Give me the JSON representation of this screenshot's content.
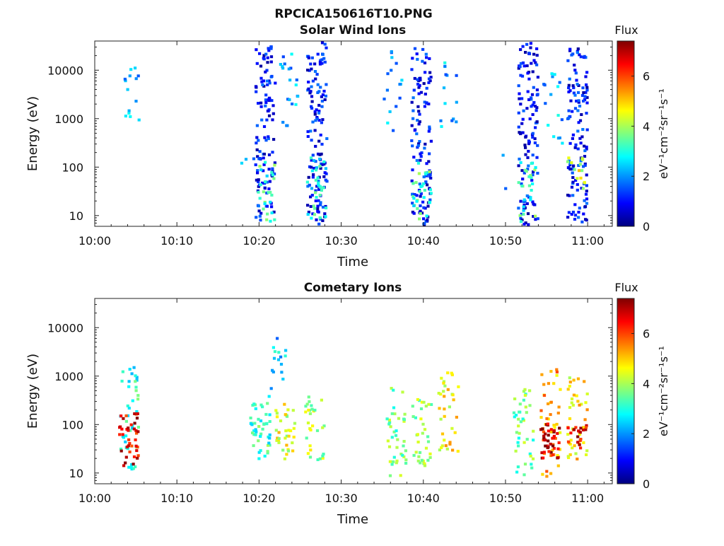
{
  "figure": {
    "main_title": "RPCICA150616T10.PNG"
  },
  "colormap": [
    "#00007f",
    "#0000ff",
    "#007fff",
    "#00ffff",
    "#7fff7f",
    "#ffff00",
    "#ff7f00",
    "#ff0000",
    "#7f0000"
  ],
  "chart_data": [
    {
      "type": "heatmap",
      "title": "Solar Wind Ions",
      "xlabel": "Time",
      "ylabel": "Energy (eV)",
      "y_scale": "log",
      "x_ticks": [
        "10:00",
        "10:10",
        "10:20",
        "10:30",
        "10:40",
        "10:50",
        "11:00"
      ],
      "y_ticks": [
        "10",
        "100",
        "1000",
        "10000"
      ],
      "xlim_minutes": [
        0,
        63
      ],
      "ylim": [
        6,
        40000
      ],
      "colorbar": {
        "title": "Flux",
        "unit": "eV⁻¹cm⁻²sr⁻¹s⁻¹",
        "range": [
          0,
          7.4
        ],
        "ticks": [
          "0",
          "2",
          "4",
          "6"
        ]
      },
      "clusters": [
        {
          "t": 4.3,
          "e_min": 600,
          "e_max": 12000,
          "flux": 2.2,
          "count": 14
        },
        {
          "t": 18.7,
          "e_min": 80,
          "e_max": 180,
          "flux": 2.2,
          "count": 3
        },
        {
          "t": 20.6,
          "e_min": 6,
          "e_max": 35000,
          "flux": 1.0,
          "count": 120
        },
        {
          "t": 20.6,
          "e_min": 8,
          "e_max": 150,
          "flux": 3.2,
          "count": 25
        },
        {
          "t": 23.6,
          "e_min": 700,
          "e_max": 25000,
          "flux": 2.2,
          "count": 20
        },
        {
          "t": 26.9,
          "e_min": 6,
          "e_max": 40000,
          "flux": 1.0,
          "count": 130
        },
        {
          "t": 26.9,
          "e_min": 8,
          "e_max": 180,
          "flux": 3.0,
          "count": 30
        },
        {
          "t": 36.1,
          "e_min": 600,
          "e_max": 35000,
          "flux": 2.2,
          "count": 16
        },
        {
          "t": 39.6,
          "e_min": 6,
          "e_max": 30000,
          "flux": 1.0,
          "count": 120
        },
        {
          "t": 39.6,
          "e_min": 6,
          "e_max": 150,
          "flux": 3.2,
          "count": 30
        },
        {
          "t": 42.9,
          "e_min": 600,
          "e_max": 20000,
          "flux": 2.2,
          "count": 14
        },
        {
          "t": 50.7,
          "e_min": 20,
          "e_max": 900,
          "flux": 2.2,
          "count": 3
        },
        {
          "t": 52.6,
          "e_min": 6,
          "e_max": 40000,
          "flux": 1.0,
          "count": 120
        },
        {
          "t": 52.6,
          "e_min": 8,
          "e_max": 180,
          "flux": 3.2,
          "count": 25
        },
        {
          "t": 55.6,
          "e_min": 300,
          "e_max": 15000,
          "flux": 2.2,
          "count": 16
        },
        {
          "t": 58.6,
          "e_min": 6,
          "e_max": 30000,
          "flux": 1.0,
          "count": 130
        },
        {
          "t": 58.3,
          "e_min": 30,
          "e_max": 200,
          "flux": 4.4,
          "count": 14
        }
      ]
    },
    {
      "type": "heatmap",
      "title": "Cometary Ions",
      "xlabel": "Time",
      "ylabel": "Energy (eV)",
      "y_scale": "log",
      "x_ticks": [
        "10:00",
        "10:10",
        "10:20",
        "10:30",
        "10:40",
        "10:50",
        "11:00"
      ],
      "y_ticks": [
        "10",
        "100",
        "1000",
        "10000"
      ],
      "xlim_minutes": [
        0,
        63
      ],
      "ylim": [
        6,
        40000
      ],
      "colorbar": {
        "title": "Flux",
        "unit": "eV⁻¹cm⁻²sr⁻¹s⁻¹",
        "range": [
          0,
          7.4
        ],
        "ticks": [
          "0",
          "2",
          "4",
          "6"
        ]
      },
      "clusters": [
        {
          "t": 4.0,
          "e_min": 8,
          "e_max": 1800,
          "flux": 3.0,
          "count": 40
        },
        {
          "t": 4.0,
          "e_min": 15,
          "e_max": 200,
          "flux": 6.6,
          "count": 40
        },
        {
          "t": 20.0,
          "e_min": 20,
          "e_max": 300,
          "flux": 3.2,
          "count": 45
        },
        {
          "t": 23.0,
          "e_min": 20,
          "e_max": 300,
          "flux": 4.4,
          "count": 35
        },
        {
          "t": 22.0,
          "e_min": 300,
          "e_max": 8000,
          "flux": 2.4,
          "count": 16
        },
        {
          "t": 26.6,
          "e_min": 20,
          "e_max": 400,
          "flux": 4.0,
          "count": 30
        },
        {
          "t": 36.6,
          "e_min": 8,
          "e_max": 900,
          "flux": 3.6,
          "count": 40
        },
        {
          "t": 39.6,
          "e_min": 15,
          "e_max": 400,
          "flux": 3.8,
          "count": 35
        },
        {
          "t": 42.9,
          "e_min": 20,
          "e_max": 1500,
          "flux": 4.6,
          "count": 35
        },
        {
          "t": 52.0,
          "e_min": 8,
          "e_max": 600,
          "flux": 3.6,
          "count": 40
        },
        {
          "t": 55.3,
          "e_min": 8,
          "e_max": 1500,
          "flux": 5.2,
          "count": 45
        },
        {
          "t": 55.3,
          "e_min": 20,
          "e_max": 120,
          "flux": 7.0,
          "count": 40
        },
        {
          "t": 58.6,
          "e_min": 20,
          "e_max": 1000,
          "flux": 4.8,
          "count": 40
        },
        {
          "t": 58.6,
          "e_min": 35,
          "e_max": 120,
          "flux": 6.6,
          "count": 20
        }
      ]
    }
  ]
}
